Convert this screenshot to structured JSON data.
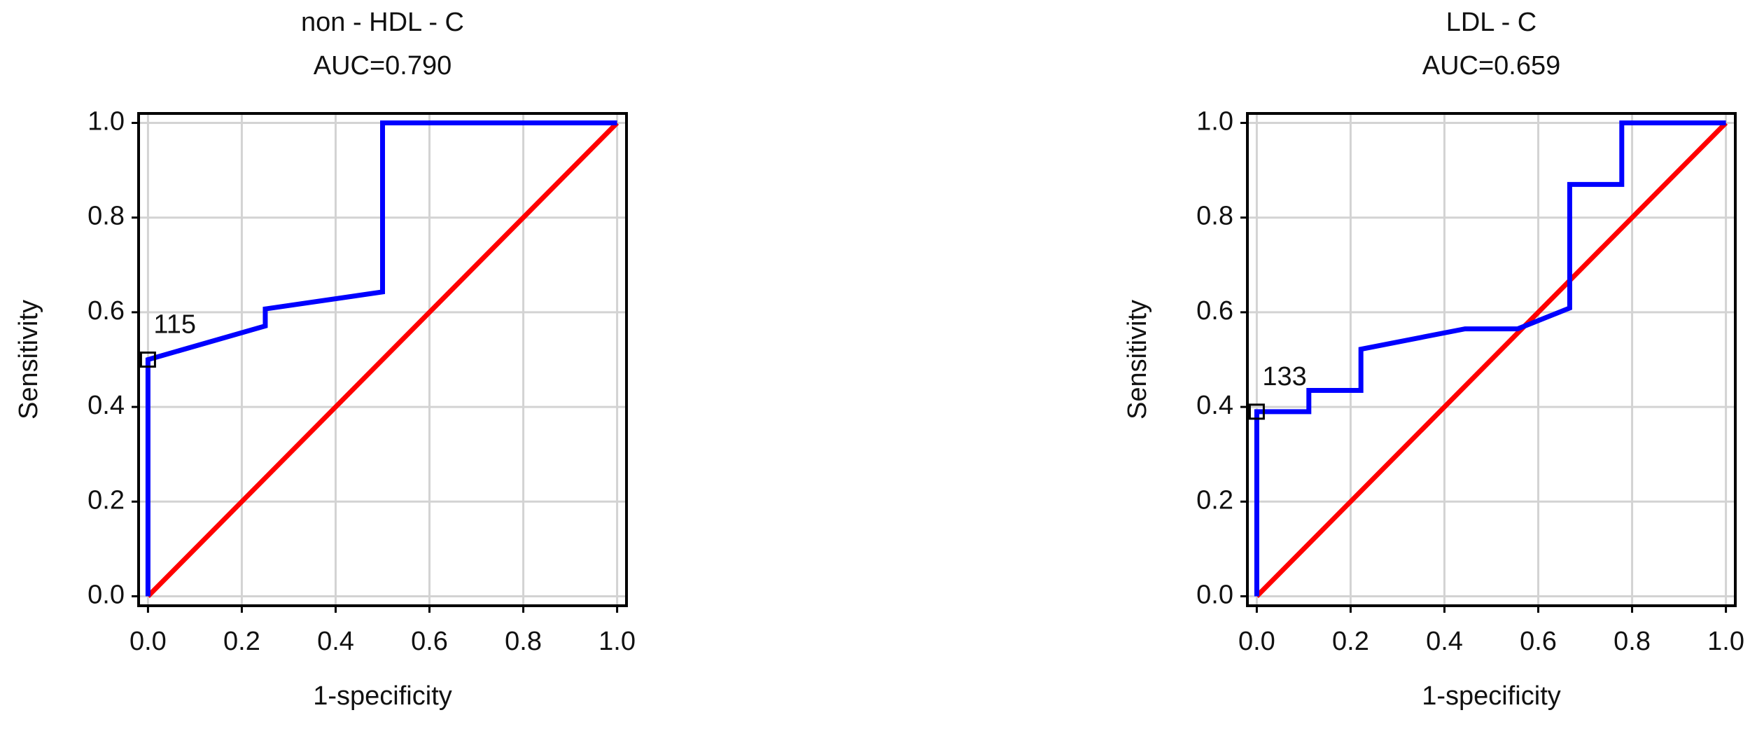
{
  "chart_data": [
    {
      "type": "line",
      "title": "non - HDL - C",
      "subtitle": "AUC=0.790",
      "xlabel": "1-specificity",
      "ylabel": "Sensitivity",
      "xlim": [
        -0.02,
        1.02
      ],
      "ylim": [
        -0.02,
        1.02
      ],
      "xticks": [
        {
          "value": 0,
          "label": "0.0"
        },
        0.2,
        0.4,
        0.6,
        0.8,
        {
          "value": 1,
          "label": "1.0"
        }
      ],
      "yticks": [
        {
          "value": 0,
          "label": "0.0"
        },
        0.2,
        0.4,
        0.6,
        0.8,
        {
          "value": 1,
          "label": "1.0"
        }
      ],
      "grid": true,
      "series": [
        {
          "color": "#0000ff",
          "x": [
            0,
            0,
            0.25,
            0.25,
            0.5,
            0.5,
            1
          ],
          "values": [
            0,
            0.5,
            0.571,
            0.607,
            0.643,
            1,
            1
          ]
        },
        {
          "color": "#ff0000",
          "x": [
            0,
            1
          ],
          "values": [
            0,
            1
          ]
        }
      ],
      "annotations": [
        {
          "text": "115",
          "x": 0,
          "y": 0.5
        }
      ]
    },
    {
      "type": "line",
      "title": "LDL - C",
      "subtitle": "AUC=0.659",
      "xlabel": "1-specificity",
      "ylabel": "Sensitivity",
      "xlim": [
        -0.02,
        1.02
      ],
      "ylim": [
        -0.02,
        1.02
      ],
      "xticks": [
        {
          "value": 0,
          "label": "0.0"
        },
        0.2,
        0.4,
        0.6,
        0.8,
        {
          "value": 1,
          "label": "1.0"
        }
      ],
      "yticks": [
        {
          "value": 0,
          "label": "0.0"
        },
        0.2,
        0.4,
        0.6,
        0.8,
        {
          "value": 1,
          "label": "1.0"
        }
      ],
      "grid": true,
      "series": [
        {
          "color": "#0000ff",
          "x": [
            0,
            0,
            0.111,
            0.111,
            0.222,
            0.222,
            0.444,
            0.556,
            0.667,
            0.667,
            0.778,
            0.778,
            1
          ],
          "values": [
            0,
            0.39,
            0.39,
            0.435,
            0.435,
            0.522,
            0.565,
            0.565,
            0.609,
            0.87,
            0.87,
            1,
            1
          ]
        },
        {
          "color": "#ff0000",
          "x": [
            0,
            1
          ],
          "values": [
            0,
            1
          ]
        }
      ],
      "annotations": [
        {
          "text": "133",
          "x": 0,
          "y": 0.39
        }
      ]
    }
  ]
}
